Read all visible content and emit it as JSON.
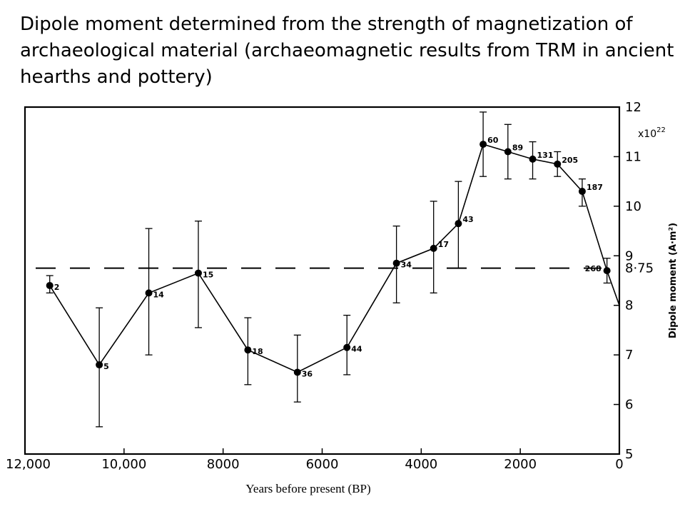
{
  "title": "Dipole moment determined from the strength of magnetization of archaeological material (archaeomagnetic results from TRM in ancient hearths and pottery)",
  "chart_data": {
    "type": "line",
    "xlabel": "Years before present (BP)",
    "ylabel": "Dipole moment (A·m²)",
    "y_multiplier_label": "x10",
    "y_multiplier_exp": "22",
    "xlim": [
      12000,
      0
    ],
    "ylim": [
      5,
      12
    ],
    "x_ticks": [
      {
        "value": 12000,
        "label": "12,000"
      },
      {
        "value": 10000,
        "label": "10,000"
      },
      {
        "value": 8000,
        "label": "8000"
      },
      {
        "value": 6000,
        "label": "6000"
      },
      {
        "value": 4000,
        "label": "4000"
      },
      {
        "value": 2000,
        "label": "2000"
      },
      {
        "value": 0,
        "label": "0"
      }
    ],
    "y_ticks": [
      {
        "value": 12,
        "label": "12"
      },
      {
        "value": 11,
        "label": "11"
      },
      {
        "value": 10,
        "label": "10"
      },
      {
        "value": 9,
        "label": "9"
      },
      {
        "value": 8.75,
        "label": "8·75"
      },
      {
        "value": 8,
        "label": "8"
      },
      {
        "value": 7,
        "label": "7"
      },
      {
        "value": 6,
        "label": "6"
      },
      {
        "value": 5,
        "label": "5"
      }
    ],
    "reference_line": {
      "y": 8.75,
      "style": "dashed"
    },
    "grid": false,
    "series": [
      {
        "points": [
          {
            "x": 11500,
            "y": 8.4,
            "low": 8.25,
            "high": 8.6,
            "label": "2"
          },
          {
            "x": 10500,
            "y": 6.8,
            "low": 5.55,
            "high": 7.95,
            "label": "5"
          },
          {
            "x": 9500,
            "y": 8.25,
            "low": 7.0,
            "high": 9.55,
            "label": "14"
          },
          {
            "x": 8500,
            "y": 8.65,
            "low": 7.55,
            "high": 9.7,
            "label": "15"
          },
          {
            "x": 7500,
            "y": 7.1,
            "low": 6.4,
            "high": 7.75,
            "label": "18"
          },
          {
            "x": 6500,
            "y": 6.65,
            "low": 6.05,
            "high": 7.4,
            "label": "36"
          },
          {
            "x": 5500,
            "y": 7.15,
            "low": 6.6,
            "high": 7.8,
            "label": "44"
          },
          {
            "x": 4500,
            "y": 8.85,
            "low": 8.05,
            "high": 9.6,
            "label": "34"
          },
          {
            "x": 3750,
            "y": 9.15,
            "low": 8.25,
            "high": 10.1,
            "label": "17"
          },
          {
            "x": 3250,
            "y": 9.65,
            "low": 8.75,
            "high": 10.5,
            "label": "43"
          },
          {
            "x": 2750,
            "y": 11.25,
            "low": 10.6,
            "high": 11.9,
            "label": "60"
          },
          {
            "x": 2250,
            "y": 11.1,
            "low": 10.55,
            "high": 11.65,
            "label": "89"
          },
          {
            "x": 1750,
            "y": 10.95,
            "low": 10.55,
            "high": 11.3,
            "label": "131"
          },
          {
            "x": 1250,
            "y": 10.85,
            "low": 10.6,
            "high": 11.1,
            "label": "205"
          },
          {
            "x": 750,
            "y": 10.3,
            "low": 10.0,
            "high": 10.55,
            "label": "187"
          },
          {
            "x": 250,
            "y": 8.7,
            "low": 8.45,
            "high": 8.95,
            "label": "268"
          }
        ],
        "trailing_segment_end": {
          "x": 0,
          "y": 8.0
        }
      }
    ]
  }
}
